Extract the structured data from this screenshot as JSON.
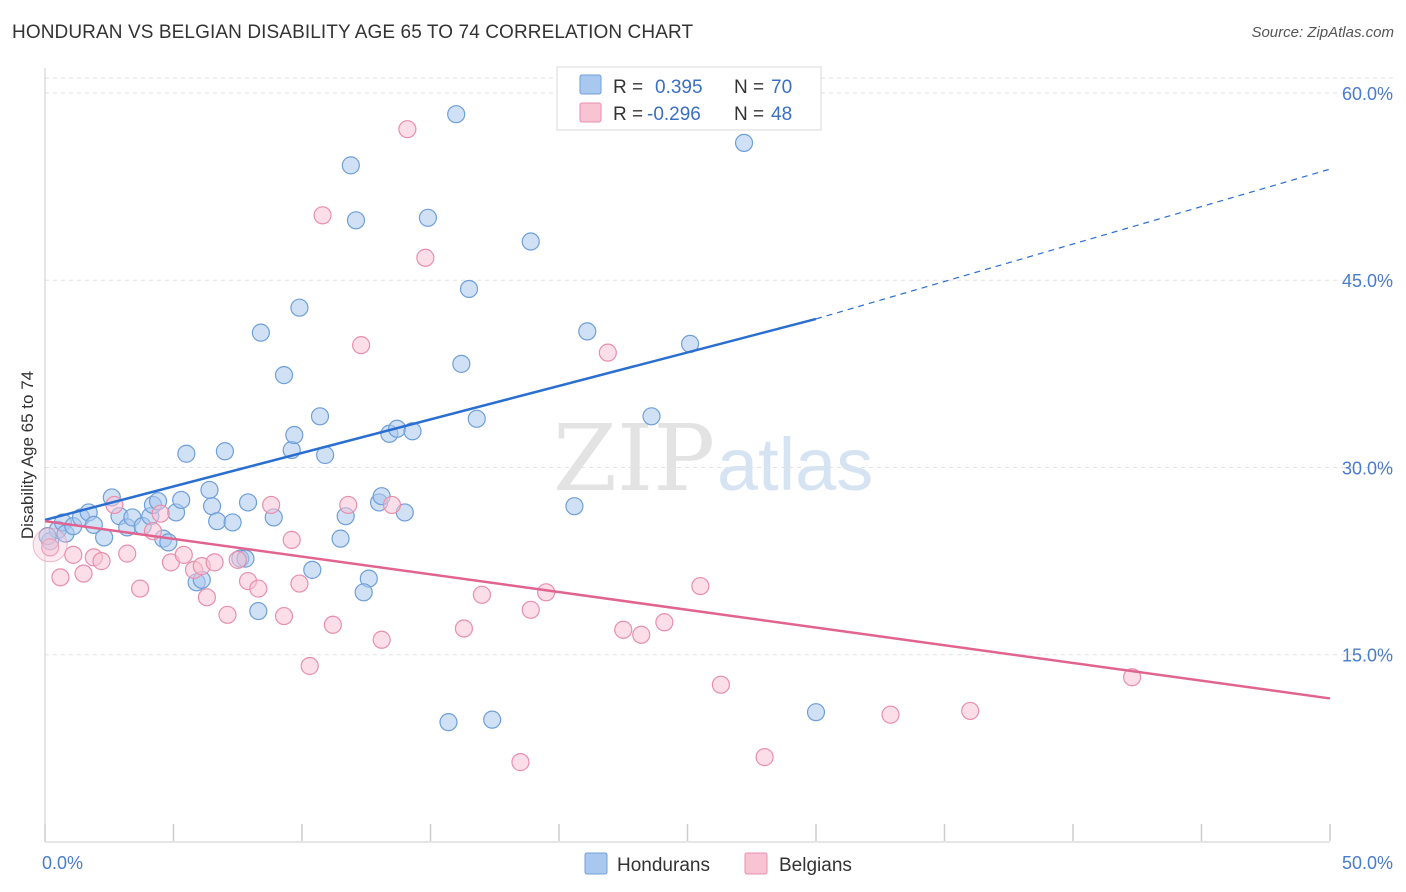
{
  "title": "HONDURAN VS BELGIAN DISABILITY AGE 65 TO 74 CORRELATION CHART",
  "source": "Source: ZipAtlas.com",
  "watermark": {
    "zip": "ZIP",
    "atlas": "atlas"
  },
  "colors": {
    "hondurans_fill": "#a9c8ef",
    "hondurans_stroke": "#6f9fd8",
    "hondurans_line": "#2a6fd0",
    "belgians_fill": "#f8c3d3",
    "belgians_stroke": "#e98fad",
    "belgians_line": "#e0648f",
    "grid": "#e2e2e2",
    "tick_label": "#4a7cc9"
  },
  "legend": {
    "rows": [
      {
        "r_label": "R =",
        "r_value": "0.395",
        "n_label": "N =",
        "n_value": "70"
      },
      {
        "r_label": "R =",
        "r_value": "-0.296",
        "n_label": "N =",
        "n_value": "48"
      }
    ]
  },
  "chart_data": {
    "type": "scatter",
    "title": "HONDURAN VS BELGIAN DISABILITY AGE 65 TO 74 CORRELATION CHART",
    "xlabel": "",
    "ylabel": "Disability Age 65 to 74",
    "xlim": [
      0,
      50
    ],
    "ylim": [
      0,
      62
    ],
    "x_tick_labels": [
      "0.0%",
      "50.0%"
    ],
    "y_ticks": [
      15,
      30,
      45,
      60
    ],
    "y_tick_labels": [
      "15.0%",
      "30.0%",
      "45.0%",
      "60.0%"
    ],
    "grid": "horizontal dashed",
    "legend_placement": "bottom-center",
    "series": [
      {
        "name": "Hondurans",
        "r": 0.395,
        "n": 70,
        "trend": {
          "x": [
            0,
            30,
            50
          ],
          "y": [
            25.8,
            41.9,
            53.9
          ],
          "solid_to_x": 30
        },
        "points": [
          [
            0.2,
            24.1
          ],
          [
            0.5,
            25.0
          ],
          [
            0.7,
            25.6
          ],
          [
            0.8,
            24.7
          ],
          [
            1.1,
            25.3
          ],
          [
            1.4,
            26.0
          ],
          [
            1.7,
            26.4
          ],
          [
            1.9,
            25.4
          ],
          [
            2.3,
            24.4
          ],
          [
            2.6,
            27.6
          ],
          [
            2.9,
            26.1
          ],
          [
            3.2,
            25.2
          ],
          [
            3.4,
            26.0
          ],
          [
            3.8,
            25.3
          ],
          [
            4.1,
            26.1
          ],
          [
            4.2,
            27.0
          ],
          [
            4.4,
            27.3
          ],
          [
            4.6,
            24.3
          ],
          [
            4.8,
            24.0
          ],
          [
            5.1,
            26.4
          ],
          [
            5.3,
            27.4
          ],
          [
            5.5,
            31.1
          ],
          [
            5.9,
            20.8
          ],
          [
            6.1,
            21.0
          ],
          [
            6.4,
            28.2
          ],
          [
            6.5,
            26.9
          ],
          [
            6.7,
            25.7
          ],
          [
            7.0,
            31.3
          ],
          [
            7.3,
            25.6
          ],
          [
            7.6,
            22.7
          ],
          [
            7.8,
            22.7
          ],
          [
            7.9,
            27.2
          ],
          [
            8.3,
            18.5
          ],
          [
            8.4,
            40.8
          ],
          [
            8.9,
            26.0
          ],
          [
            9.3,
            37.4
          ],
          [
            9.6,
            31.4
          ],
          [
            9.7,
            32.6
          ],
          [
            9.9,
            42.8
          ],
          [
            10.4,
            21.8
          ],
          [
            10.7,
            34.1
          ],
          [
            10.9,
            31.0
          ],
          [
            11.5,
            24.3
          ],
          [
            11.7,
            26.1
          ],
          [
            11.9,
            54.2
          ],
          [
            12.1,
            49.8
          ],
          [
            12.6,
            21.1
          ],
          [
            12.4,
            20.0
          ],
          [
            13.0,
            27.2
          ],
          [
            13.1,
            27.7
          ],
          [
            13.4,
            32.7
          ],
          [
            13.7,
            33.1
          ],
          [
            14.0,
            26.4
          ],
          [
            14.3,
            32.9
          ],
          [
            14.9,
            50.0
          ],
          [
            15.7,
            9.6
          ],
          [
            16.0,
            58.3
          ],
          [
            16.2,
            38.3
          ],
          [
            16.5,
            44.3
          ],
          [
            16.8,
            33.9
          ],
          [
            17.4,
            9.8
          ],
          [
            18.9,
            48.1
          ],
          [
            20.6,
            26.9
          ],
          [
            21.1,
            40.9
          ],
          [
            23.6,
            34.1
          ],
          [
            25.1,
            39.9
          ],
          [
            26.4,
            59.7
          ],
          [
            27.2,
            56.0
          ],
          [
            30.0,
            10.4
          ],
          [
            0.1,
            24.5
          ]
        ]
      },
      {
        "name": "Belgians",
        "r": -0.296,
        "n": 48,
        "trend": {
          "x": [
            0,
            50
          ],
          "y": [
            25.7,
            11.5
          ]
        },
        "points": [
          [
            0.2,
            23.6
          ],
          [
            0.6,
            21.2
          ],
          [
            1.1,
            23.0
          ],
          [
            1.5,
            21.5
          ],
          [
            1.9,
            22.8
          ],
          [
            2.2,
            22.5
          ],
          [
            2.7,
            27.0
          ],
          [
            3.2,
            23.1
          ],
          [
            3.7,
            20.3
          ],
          [
            4.2,
            24.9
          ],
          [
            4.5,
            26.3
          ],
          [
            4.9,
            22.4
          ],
          [
            5.4,
            23.0
          ],
          [
            5.8,
            21.8
          ],
          [
            6.1,
            22.1
          ],
          [
            6.3,
            19.6
          ],
          [
            6.6,
            22.4
          ],
          [
            7.1,
            18.2
          ],
          [
            7.5,
            22.6
          ],
          [
            7.9,
            20.9
          ],
          [
            8.3,
            20.3
          ],
          [
            8.8,
            27.0
          ],
          [
            9.3,
            18.1
          ],
          [
            9.6,
            24.2
          ],
          [
            9.9,
            20.7
          ],
          [
            10.3,
            14.1
          ],
          [
            10.8,
            50.2
          ],
          [
            11.2,
            17.4
          ],
          [
            11.8,
            27.0
          ],
          [
            12.3,
            39.8
          ],
          [
            13.1,
            16.2
          ],
          [
            13.5,
            27.0
          ],
          [
            14.1,
            57.1
          ],
          [
            14.8,
            46.8
          ],
          [
            16.3,
            17.1
          ],
          [
            17.0,
            19.8
          ],
          [
            18.5,
            6.4
          ],
          [
            18.9,
            18.6
          ],
          [
            19.5,
            20.0
          ],
          [
            21.9,
            39.2
          ],
          [
            22.5,
            17.0
          ],
          [
            23.2,
            16.6
          ],
          [
            24.1,
            17.6
          ],
          [
            25.5,
            20.5
          ],
          [
            26.3,
            12.6
          ],
          [
            28.0,
            6.8
          ],
          [
            32.9,
            10.2
          ],
          [
            36.0,
            10.5
          ]
        ]
      }
    ],
    "extra_belgian_point": [
      42.3,
      13.2
    ]
  },
  "bottom_legend": [
    {
      "label": "Hondurans"
    },
    {
      "label": "Belgians"
    }
  ]
}
